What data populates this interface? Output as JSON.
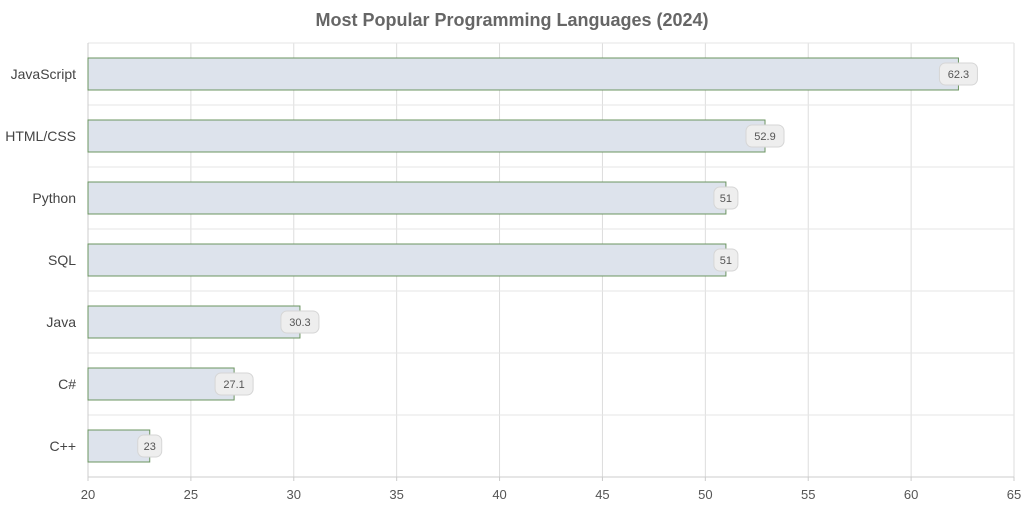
{
  "chart_data": {
    "type": "bar",
    "orientation": "horizontal",
    "title": "Most Popular Programming Languages (2024)",
    "categories": [
      "JavaScript",
      "HTML/CSS",
      "Python",
      "SQL",
      "Java",
      "C#",
      "C++"
    ],
    "values": [
      62.3,
      52.9,
      51,
      51,
      30.3,
      27.1,
      23
    ],
    "value_labels": [
      "62.3",
      "52.9",
      "51",
      "51",
      "30.3",
      "27.1",
      "23"
    ],
    "xlim": [
      20,
      65
    ],
    "xticks": [
      20,
      25,
      30,
      35,
      40,
      45,
      50,
      55,
      60,
      65
    ],
    "grid": true,
    "colors": {
      "bar_fill": "#dde3ec",
      "bar_stroke": "#6b9460",
      "label_bg": "#eeeeee",
      "label_border": "#d6d6d6",
      "grid": "#dddddd"
    }
  }
}
